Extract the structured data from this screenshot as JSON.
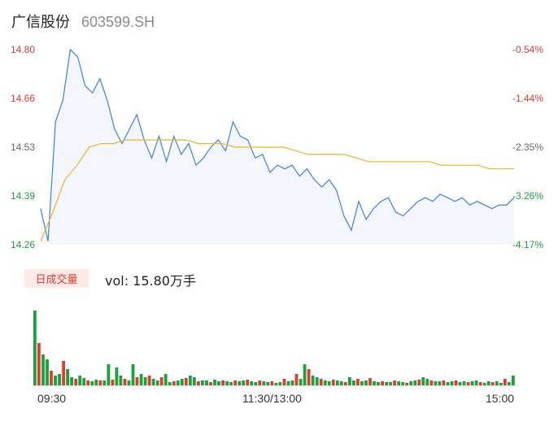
{
  "header": {
    "name": "广信股份",
    "code": "603599.SH"
  },
  "y_left": [
    "14.80",
    "14.66",
    "14.53",
    "14.39",
    "14.26"
  ],
  "y_right": [
    "-0.54%",
    "-1.44%",
    "-2.35%",
    "-3.26%",
    "-4.17%"
  ],
  "volume": {
    "badge": "日成交量",
    "readout": "vol: 15.80万手"
  },
  "x_labels": [
    "09:30",
    "11:30/13:00",
    "15:00"
  ],
  "colors": {
    "price": "#3d7fe6",
    "avg": "#f0b321",
    "up": "#e03b2f",
    "down": "#1aa13b",
    "left_axis": "#e03b2f",
    "right_down": "#e03b2f",
    "right_neutral": "#666666",
    "right_green": "#1aa13b"
  },
  "chart_data": [
    {
      "type": "line",
      "title": "",
      "x_range": [
        "09:30",
        "15:00"
      ],
      "ylim": [
        14.26,
        14.8
      ],
      "series": [
        {
          "name": "",
          "color": "#3d7fe6",
          "values": [
            14.36,
            14.27,
            14.6,
            14.66,
            14.8,
            14.78,
            14.7,
            14.68,
            14.72,
            14.66,
            14.58,
            14.54,
            14.58,
            14.62,
            14.55,
            14.5,
            14.56,
            14.49,
            14.56,
            14.51,
            14.54,
            14.48,
            14.5,
            14.53,
            14.55,
            14.52,
            14.6,
            14.56,
            14.55,
            14.5,
            14.51,
            14.46,
            14.48,
            14.47,
            14.48,
            14.45,
            14.47,
            14.44,
            14.42,
            14.44,
            14.41,
            14.34,
            14.3,
            14.38,
            14.33,
            14.36,
            14.38,
            14.39,
            14.35,
            14.34,
            14.36,
            14.38,
            14.39,
            14.38,
            14.4,
            14.39,
            14.38,
            14.39,
            14.37,
            14.38,
            14.37,
            14.36,
            14.37,
            14.37,
            14.39
          ]
        },
        {
          "name": "",
          "color": "#f0b321",
          "values": [
            14.27,
            14.35,
            14.44,
            14.48,
            14.53,
            14.54,
            14.54,
            14.55,
            14.55,
            14.55,
            14.55,
            14.55,
            14.55,
            14.54,
            14.54,
            14.54,
            14.53,
            14.53,
            14.53,
            14.53,
            14.53,
            14.52,
            14.51,
            14.51,
            14.51,
            14.51,
            14.5,
            14.49,
            14.49,
            14.49,
            14.49,
            14.49,
            14.49,
            14.48,
            14.48,
            14.48,
            14.48,
            14.47,
            14.47,
            14.47
          ]
        }
      ]
    },
    {
      "type": "bar",
      "title": "",
      "series": [
        {
          "name": "",
          "values": [
            92,
            52,
            38,
            32,
            18,
            12,
            14,
            30,
            20,
            10,
            8,
            12,
            9,
            6,
            5,
            7,
            6,
            6,
            26,
            7,
            22,
            12,
            8,
            6,
            26,
            10,
            14,
            10,
            12,
            8,
            6,
            10,
            14,
            4,
            5,
            6,
            8,
            9,
            12,
            10,
            5,
            6,
            6,
            4,
            7,
            5,
            6,
            5,
            4,
            6,
            5,
            6,
            7,
            5,
            4,
            6,
            5,
            4,
            5,
            3,
            4,
            8,
            5,
            6,
            14,
            8,
            26,
            20,
            12,
            10,
            8,
            6,
            5,
            7,
            6,
            5,
            4,
            10,
            6,
            8,
            5,
            6,
            9,
            5,
            4,
            5,
            4,
            4,
            6,
            5,
            4,
            3,
            5,
            6,
            7,
            10,
            8,
            6,
            5,
            5,
            6,
            4,
            5,
            6,
            4,
            5,
            4,
            5,
            6,
            4,
            3,
            5,
            4,
            5,
            3,
            8,
            4,
            12
          ]
        }
      ]
    }
  ]
}
